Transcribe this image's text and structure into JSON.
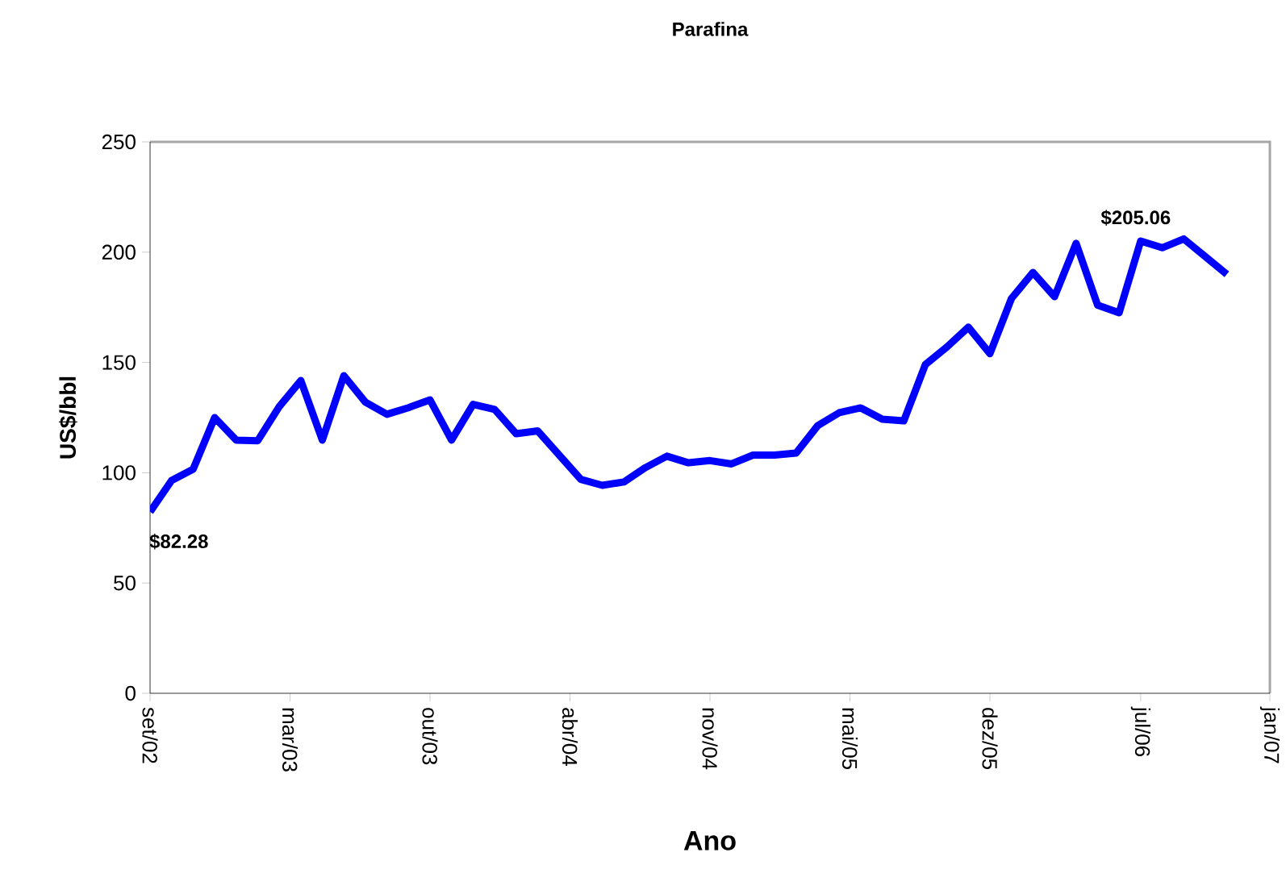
{
  "chart_data": {
    "type": "line",
    "title": "Parafina",
    "xlabel": "Ano",
    "ylabel": "US$/bbl",
    "x": [
      "2002-09",
      "2002-10",
      "2002-11",
      "2002-12",
      "2003-01",
      "2003-02",
      "2003-03",
      "2003-04",
      "2003-05",
      "2003-06",
      "2003-07",
      "2003-08",
      "2003-09",
      "2003-10",
      "2003-11",
      "2003-12",
      "2004-01",
      "2004-02",
      "2004-03",
      "2004-04",
      "2004-05",
      "2004-06",
      "2004-07",
      "2004-08",
      "2004-09",
      "2004-10",
      "2004-11",
      "2004-12",
      "2005-01",
      "2005-02",
      "2005-03",
      "2005-04",
      "2005-05",
      "2005-06",
      "2005-07",
      "2005-08",
      "2005-09",
      "2005-10",
      "2005-11",
      "2005-12",
      "2006-01",
      "2006-02",
      "2006-03",
      "2006-04",
      "2006-05",
      "2006-06",
      "2006-07",
      "2006-08",
      "2006-09",
      "2006-10",
      "2006-11"
    ],
    "series": [
      {
        "color": "#0000ff",
        "values": [
          82.28,
          96.5,
          101.6,
          125,
          114.8,
          114.5,
          130,
          141.8,
          114.8,
          144,
          132,
          126.5,
          129.5,
          133,
          114.8,
          131,
          128.7,
          117.7,
          119,
          108,
          97,
          94.3,
          95.8,
          102.3,
          107.5,
          104.5,
          105.5,
          104,
          108,
          108,
          108.9,
          121.3,
          127.2,
          129.4,
          124.3,
          123.5,
          149,
          157,
          166,
          154,
          179,
          190.8,
          179.8,
          204,
          176,
          172.5,
          205.06,
          202,
          206,
          198,
          190
        ]
      }
    ],
    "xlim": [
      "2002-09-01",
      "2007-01-01"
    ],
    "xticks": [
      {
        "value": "2002-09-01",
        "label": "set/02"
      },
      {
        "value": "2003-03-16",
        "label": "mar/03"
      },
      {
        "value": "2003-10-01",
        "label": "out/03"
      },
      {
        "value": "2004-04-16",
        "label": "abr/04"
      },
      {
        "value": "2004-11-01",
        "label": "nov/04"
      },
      {
        "value": "2005-05-16",
        "label": "mai/05"
      },
      {
        "value": "2005-12-01",
        "label": "dez/05"
      },
      {
        "value": "2006-07-01",
        "label": "jul/06"
      },
      {
        "value": "2007-01-01",
        "label": "jan/07"
      }
    ],
    "ylim": [
      0,
      250
    ],
    "yticks": [
      0,
      50,
      100,
      150,
      200,
      250
    ],
    "marker": "none",
    "line_style": "solid",
    "annotations": [
      {
        "text": "$82.28",
        "x": "2002-09",
        "y": 82.28
      },
      {
        "text": "$205.06",
        "x": "2006-07",
        "y": 205.06
      }
    ]
  }
}
